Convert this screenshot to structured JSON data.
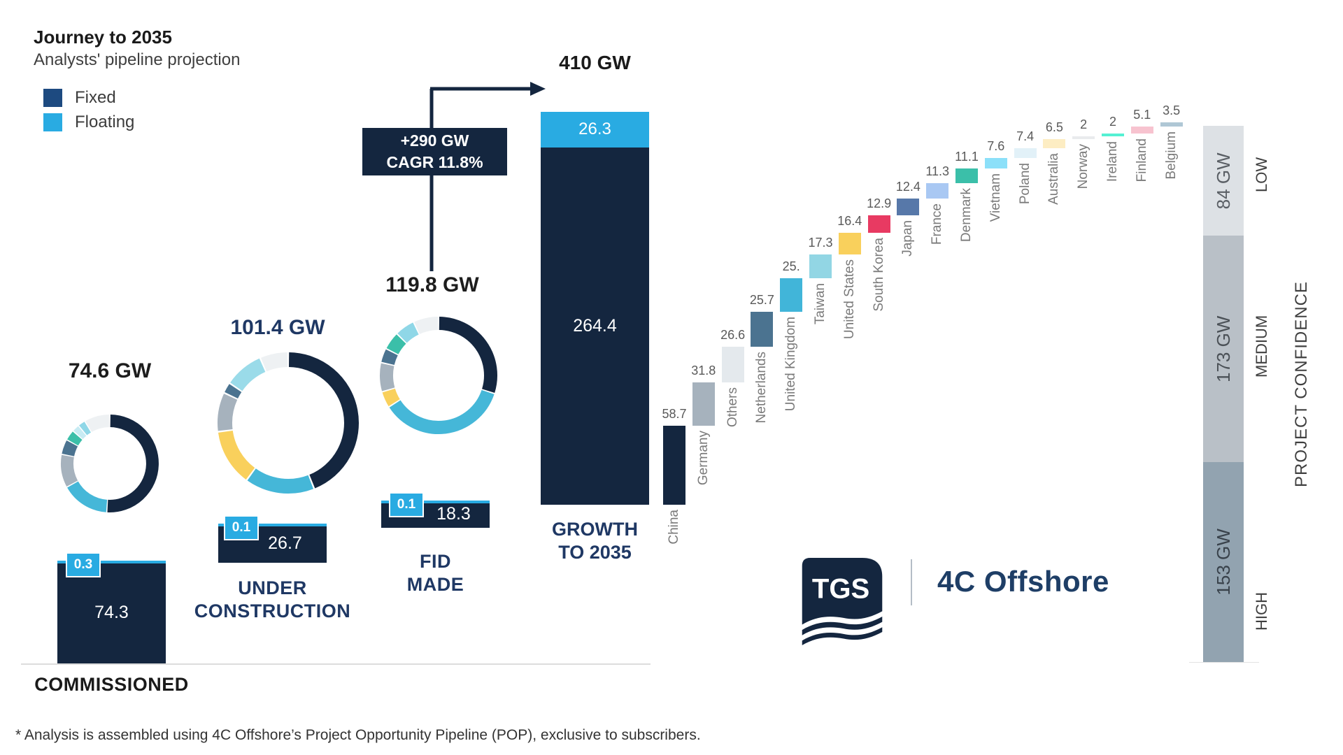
{
  "title": "Journey to 2035",
  "subtitle": "Analysts' pipeline projection",
  "legend": {
    "fixed_label": "Fixed",
    "floating_label": "Floating"
  },
  "palette": {
    "fixed_legend": "#1d4a80",
    "floating": "#29abe2",
    "bar_navy": "#14263f",
    "navy_text": "#1f3864"
  },
  "logo": {
    "tgs": "TGS",
    "partner": "4C Offshore"
  },
  "footnote": "* Analysis is assembled using 4C Offshore’s Project Opportunity Pipeline (POP), exclusive to subscribers.",
  "chart_data": {
    "type": "composite",
    "unit": "GW",
    "pipeline_stages": [
      {
        "name_lines": [
          "COMMISSIONED"
        ],
        "total_label": "74.6 GW",
        "total_gw": 74.6,
        "bar_fixed_gw": 74.3,
        "bar_fixed_label": "74.3",
        "bar_floating_gw": 0.3,
        "bar_floating_label": "0.3",
        "donut_segments": [
          {
            "color": "#14263f",
            "pct": 51
          },
          {
            "color": "#45b7d8",
            "pct": 16
          },
          {
            "color": "#a6b2bd",
            "pct": 11
          },
          {
            "color": "#4b7390",
            "pct": 5
          },
          {
            "color": "#3bbfa9",
            "pct": 3.5
          },
          {
            "color": "#c7ebf3",
            "pct": 2.5
          },
          {
            "color": "#8fd7e7",
            "pct": 2.5
          },
          {
            "color": "#eef1f3",
            "pct": 8.5
          }
        ]
      },
      {
        "name_lines": [
          "UNDER",
          "CONSTRUCTION"
        ],
        "total_label": "101.4 GW",
        "total_gw": 101.4,
        "bar_fixed_gw": 26.7,
        "bar_fixed_label": "26.7",
        "bar_floating_gw": 0.1,
        "bar_floating_label": "0.1",
        "donut_segments": [
          {
            "color": "#14263f",
            "pct": 44
          },
          {
            "color": "#45b7d8",
            "pct": 16
          },
          {
            "color": "#f9d05c",
            "pct": 13
          },
          {
            "color": "#a6b2bd",
            "pct": 9
          },
          {
            "color": "#4b7390",
            "pct": 2.5
          },
          {
            "color": "#9adbe9",
            "pct": 9
          },
          {
            "color": "#eef1f3",
            "pct": 6.5
          }
        ]
      },
      {
        "name_lines": [
          "FID",
          "MADE"
        ],
        "total_label": "119.8 GW",
        "total_gw": 119.8,
        "bar_fixed_gw": 18.3,
        "bar_fixed_label": "18.3",
        "bar_floating_gw": 0.1,
        "bar_floating_label": "0.1",
        "donut_segments": [
          {
            "color": "#14263f",
            "pct": 30
          },
          {
            "color": "#45b7d8",
            "pct": 36
          },
          {
            "color": "#f9d05c",
            "pct": 4.5
          },
          {
            "color": "#a6b2bd",
            "pct": 8
          },
          {
            "color": "#4b7390",
            "pct": 4
          },
          {
            "color": "#3bbfa9",
            "pct": 5
          },
          {
            "color": "#8fd7e7",
            "pct": 5.5
          },
          {
            "color": "#eef1f3",
            "pct": 7
          }
        ]
      }
    ],
    "growth_bar": {
      "total_label": "410 GW",
      "name_lines": [
        "GROWTH",
        "TO 2035"
      ],
      "fixed_gw": 264.4,
      "fixed_label": "264.4",
      "floating_gw": 26.3,
      "floating_label": "26.3",
      "callout_lines": [
        "+290 GW",
        "CAGR 11.8%"
      ]
    },
    "country_waterfall": [
      {
        "name": "China",
        "value": 58.7,
        "label": "58.7",
        "color": "#14263f"
      },
      {
        "name": "Germany",
        "value": 31.8,
        "label": "31.8",
        "color": "#a6b2bd"
      },
      {
        "name": "Others",
        "value": 26.6,
        "label": "26.6",
        "color": "#e4e9ed"
      },
      {
        "name": "Netherlands",
        "value": 25.7,
        "label": "25.7",
        "color": "#4b7390"
      },
      {
        "name": "United Kingdom",
        "value": 25,
        "label": "25.",
        "color": "#41b5d9"
      },
      {
        "name": "Taiwan",
        "value": 17.3,
        "label": "17.3",
        "color": "#92d6e4"
      },
      {
        "name": "United States",
        "value": 16.4,
        "label": "16.4",
        "color": "#f9d05c"
      },
      {
        "name": "South Korea",
        "value": 12.9,
        "label": "12.9",
        "color": "#e83a62"
      },
      {
        "name": "Japan",
        "value": 12.4,
        "label": "12.4",
        "color": "#5778a9"
      },
      {
        "name": "France",
        "value": 11.3,
        "label": "11.3",
        "color": "#a9c8f3"
      },
      {
        "name": "Denmark",
        "value": 11.1,
        "label": "11.1",
        "color": "#3bbfa9"
      },
      {
        "name": "Vietnam",
        "value": 7.6,
        "label": "7.6",
        "color": "#8ce0f9"
      },
      {
        "name": "Poland",
        "value": 7.4,
        "label": "7.4",
        "color": "#e2f1f8"
      },
      {
        "name": "Australia",
        "value": 6.5,
        "label": "6.5",
        "color": "#fdedc3"
      },
      {
        "name": "Norway",
        "value": 2,
        "label": "2",
        "color": "#e9ebed"
      },
      {
        "name": "Ireland",
        "value": 2,
        "label": "2",
        "color": "#55f1d3"
      },
      {
        "name": "Finland",
        "value": 5.1,
        "label": "5.1",
        "color": "#f7c3cf"
      },
      {
        "name": "Belgium",
        "value": 3.5,
        "label": "3.5",
        "color": "#afc7d5"
      }
    ],
    "confidence_scale": {
      "axis_title": "PROJECT CONFIDENCE",
      "segments": [
        {
          "label": "LOW",
          "value_label": "84 GW",
          "gw": 84,
          "color": "#dde1e5"
        },
        {
          "label": "MEDIUM",
          "value_label": "173 GW",
          "gw": 173,
          "color": "#b9c0c7"
        },
        {
          "label": "HIGH",
          "value_label": "153 GW",
          "gw": 153,
          "color": "#92a3b0"
        }
      ]
    }
  }
}
